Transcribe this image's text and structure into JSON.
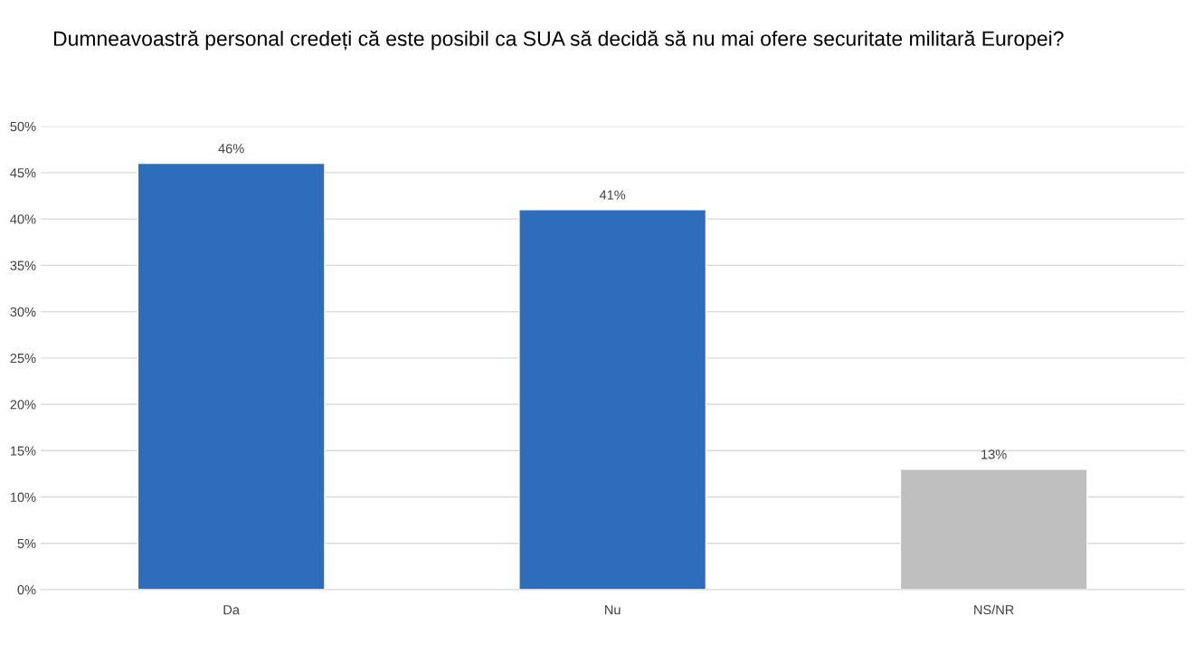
{
  "chart_data": {
    "type": "bar",
    "title": "Dumneavoastră personal credeți că este posibil ca SUA să decidă să nu mai ofere securitate militară Europei?",
    "categories": [
      "Da",
      "Nu",
      "NS/NR"
    ],
    "values": [
      46,
      41,
      13
    ],
    "colors": [
      "#2e6dbb",
      "#2e6dbb",
      "#bfbfbf"
    ],
    "value_labels": [
      "46%",
      "41%",
      "13%"
    ],
    "ylim": [
      0,
      50
    ],
    "yticks": [
      {
        "value": 0,
        "label": "0%"
      },
      {
        "value": 5,
        "label": "5%"
      },
      {
        "value": 10,
        "label": "10%"
      },
      {
        "value": 15,
        "label": "15%"
      },
      {
        "value": 20,
        "label": "20%"
      },
      {
        "value": 25,
        "label": "25%"
      },
      {
        "value": 30,
        "label": "30%"
      },
      {
        "value": 35,
        "label": "35%"
      },
      {
        "value": 40,
        "label": "40%"
      },
      {
        "value": 45,
        "label": "45%"
      },
      {
        "value": 50,
        "label": "50%"
      }
    ],
    "grid": "y"
  }
}
